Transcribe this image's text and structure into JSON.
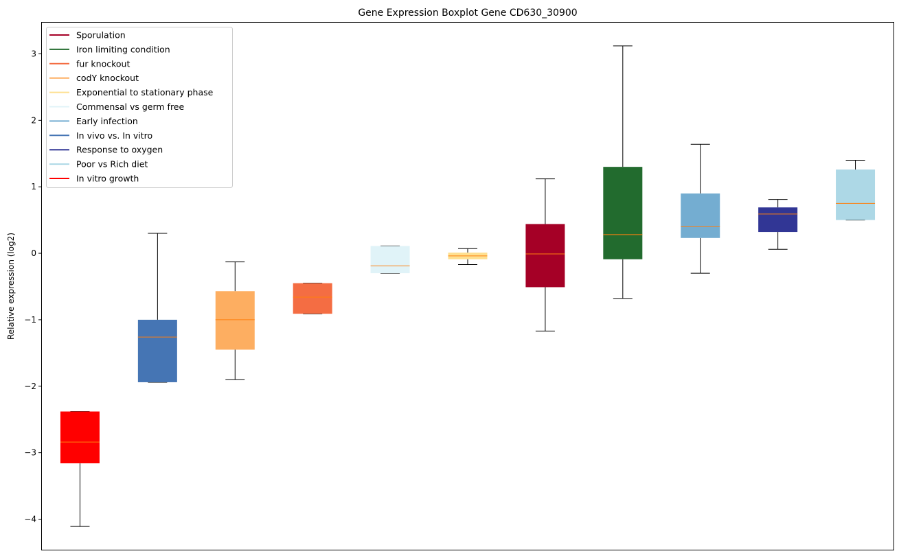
{
  "chart_data": {
    "type": "boxplot",
    "title": "Gene Expression Boxplot Gene CD630_30900",
    "xlabel": "",
    "ylabel": "Relative expression (log2)",
    "ylim": [
      -4.47,
      3.48
    ],
    "yticks": [
      3,
      2,
      1,
      0,
      -1,
      -2,
      -3,
      -4
    ],
    "ytick_labels": [
      "3",
      "2",
      "1",
      "0",
      "−1",
      "−2",
      "−3",
      "−4"
    ],
    "grid": false,
    "median_color": "#ff7f0e",
    "legend": {
      "placement": "upper-left",
      "entries": [
        {
          "label": "Sporulation",
          "color": "#a50026"
        },
        {
          "label": "Iron limiting condition",
          "color": "#226b2e"
        },
        {
          "label": "fur knockout",
          "color": "#f46d43"
        },
        {
          "label": "codY knockout",
          "color": "#fdae61"
        },
        {
          "label": "Exponential to stationary phase",
          "color": "#fee090"
        },
        {
          "label": "Commensal vs germ free",
          "color": "#e0f3f8"
        },
        {
          "label": "Early infection",
          "color": "#74add1"
        },
        {
          "label": "In vivo vs. In vitro",
          "color": "#4575b4"
        },
        {
          "label": "Response to oxygen",
          "color": "#313695"
        },
        {
          "label": "Poor vs Rich diet",
          "color": "#add8e6"
        },
        {
          "label": "In vitro growth",
          "color": "#ff0000"
        }
      ]
    },
    "boxes": [
      {
        "group": "In vitro growth",
        "color": "#ff0000",
        "whisker_low": -4.11,
        "q1": -3.16,
        "median": -2.84,
        "q3": -2.38,
        "whisker_high": -2.38
      },
      {
        "group": "In vivo vs. In vitro",
        "color": "#4575b4",
        "whisker_low": -1.94,
        "q1": -1.94,
        "median": -1.26,
        "q3": -1.0,
        "whisker_high": 0.3
      },
      {
        "group": "codY knockout",
        "color": "#fdae61",
        "whisker_low": -1.9,
        "q1": -1.45,
        "median": -1.0,
        "q3": -0.57,
        "whisker_high": -0.13
      },
      {
        "group": "fur knockout",
        "color": "#f46d43",
        "whisker_low": -0.91,
        "q1": -0.91,
        "median": -0.66,
        "q3": -0.45,
        "whisker_high": -0.45
      },
      {
        "group": "Commensal vs germ free",
        "color": "#e0f3f8",
        "whisker_low": -0.3,
        "q1": -0.3,
        "median": -0.19,
        "q3": 0.11,
        "whisker_high": 0.11
      },
      {
        "group": "Exponential to stationary phase",
        "color": "#fee090",
        "whisker_low": -0.17,
        "q1": -0.09,
        "median": -0.04,
        "q3": 0.01,
        "whisker_high": 0.07
      },
      {
        "group": "Sporulation",
        "color": "#a50026",
        "whisker_low": -1.17,
        "q1": -0.51,
        "median": -0.01,
        "q3": 0.44,
        "whisker_high": 1.12
      },
      {
        "group": "Iron limiting condition",
        "color": "#226b2e",
        "whisker_low": -0.68,
        "q1": -0.09,
        "median": 0.28,
        "q3": 1.3,
        "whisker_high": 3.12
      },
      {
        "group": "Early infection",
        "color": "#74add1",
        "whisker_low": -0.3,
        "q1": 0.23,
        "median": 0.4,
        "q3": 0.9,
        "whisker_high": 1.64
      },
      {
        "group": "Response to oxygen",
        "color": "#313695",
        "whisker_low": 0.06,
        "q1": 0.32,
        "median": 0.59,
        "q3": 0.69,
        "whisker_high": 0.81
      },
      {
        "group": "Poor vs Rich diet",
        "color": "#add8e6",
        "whisker_low": 0.5,
        "q1": 0.5,
        "median": 0.75,
        "q3": 1.26,
        "whisker_high": 1.4
      }
    ]
  }
}
